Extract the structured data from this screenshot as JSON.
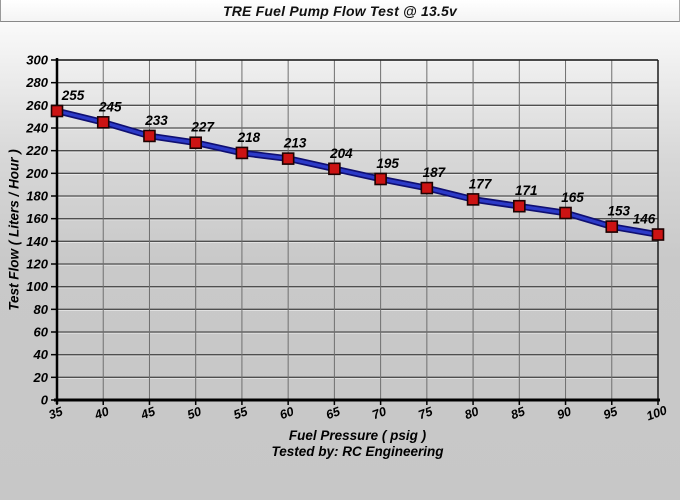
{
  "title": "TRE Fuel Pump Flow Test @ 13.5v",
  "footer": {
    "xlabel": "Fuel Pressure ( psig )",
    "tested_by": "Tested by: RC Engineering"
  },
  "chart_data": {
    "type": "line",
    "title": "TRE Fuel Pump Flow Test @ 13.5v",
    "xlabel": "Fuel Pressure ( psig )",
    "ylabel": "Test Flow ( Liters / Hour )",
    "x": [
      35,
      40,
      45,
      50,
      55,
      60,
      65,
      70,
      75,
      80,
      85,
      90,
      95,
      100
    ],
    "values": [
      255,
      245,
      233,
      227,
      218,
      213,
      204,
      195,
      187,
      177,
      171,
      165,
      153,
      146
    ],
    "xlim": [
      35,
      100
    ],
    "ylim": [
      0,
      300
    ],
    "x_tick_step": 5,
    "y_tick_step": 20,
    "grid": true,
    "legend": "none",
    "point_labels_shown": true,
    "annotation": "Tested by: RC Engineering",
    "colors": {
      "line": "#2c3ac8",
      "line_edge": "#0f0f72",
      "marker_fill": "#cc1313",
      "marker_border": "#1c0202",
      "grid_horizontal": "#4f4f4f",
      "grid_vertical": "#6f6f6f",
      "axis": "#000000",
      "plot_border": "#1d1d1d",
      "background_top": "#ffffff",
      "background_bottom": "#c7c7c7",
      "text": "#000000"
    }
  }
}
